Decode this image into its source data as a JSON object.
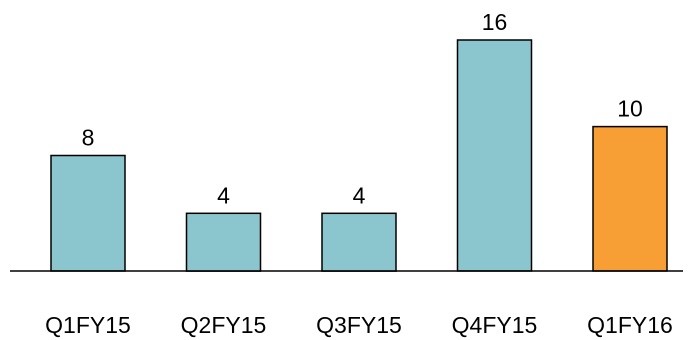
{
  "chart_data": {
    "type": "bar",
    "title": "",
    "xlabel": "",
    "ylabel": "",
    "categories": [
      "Q1FY15",
      "Q2FY15",
      "Q3FY15",
      "Q4FY15",
      "Q1FY16"
    ],
    "values": [
      8,
      4,
      4,
      16,
      10
    ],
    "data_labels": [
      "8",
      "4",
      "4",
      "16",
      "10"
    ],
    "ylim": [
      0,
      16
    ],
    "grid": false,
    "legend": "none",
    "colors": {
      "default_bar": "#8bc5cd",
      "highlight_bar": "#f79f35",
      "axis": "#000000"
    },
    "highlight_index": 4
  }
}
